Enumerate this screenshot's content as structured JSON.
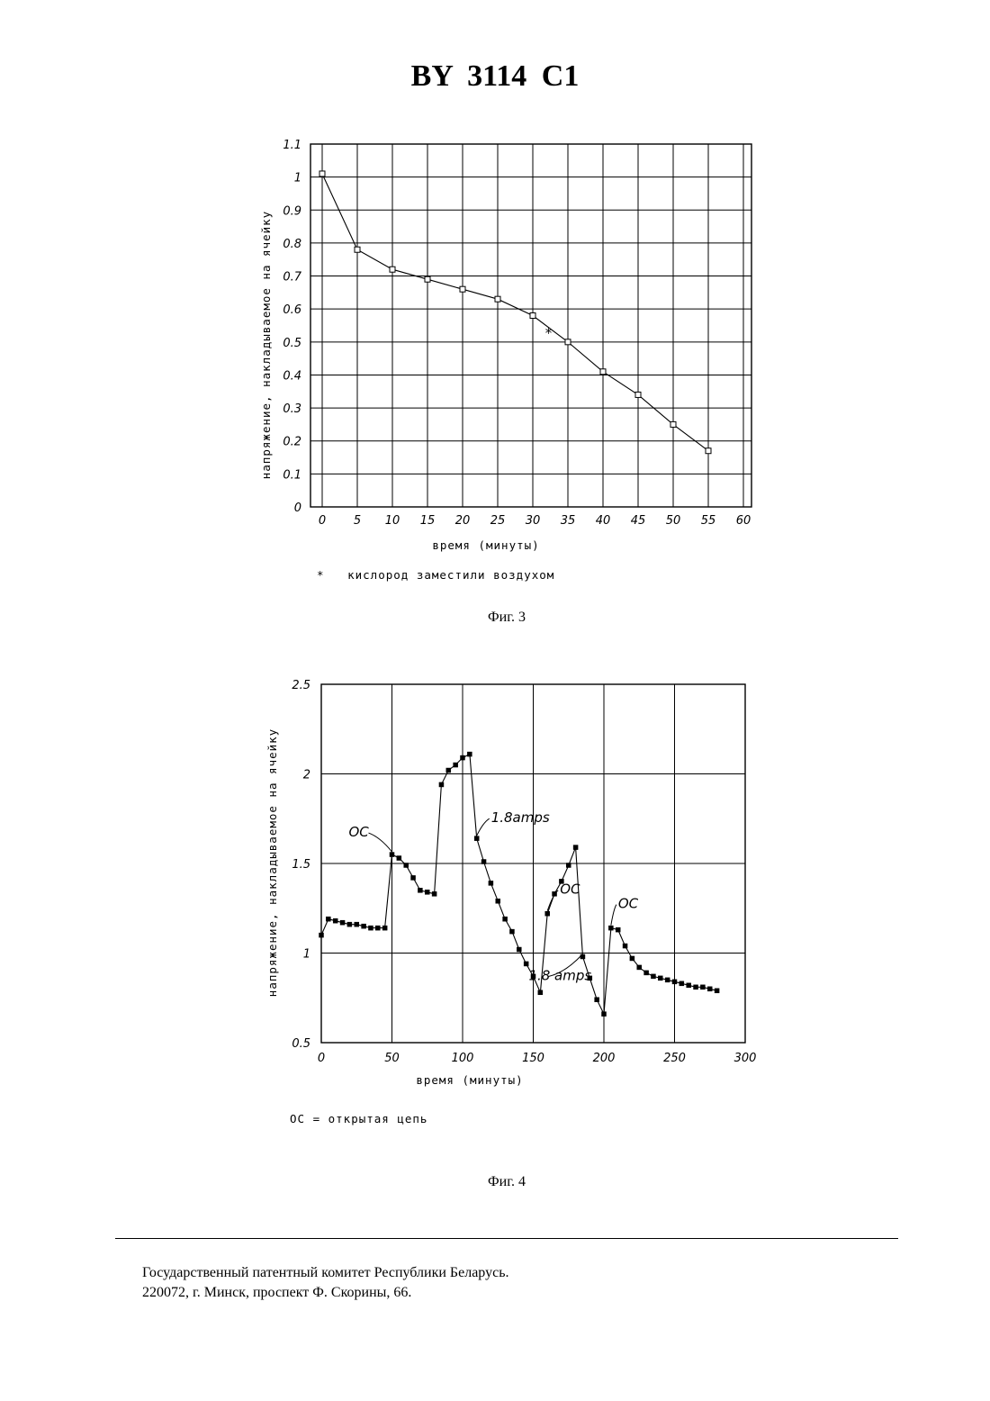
{
  "document": {
    "title": "BY 3114 C1",
    "footer_line1": "Государственный патентный комитет Республики Беларусь.",
    "footer_line2": "220072, г. Минск, проспект Ф. Скорины, 66."
  },
  "figures": [
    {
      "caption": "Фиг. 3",
      "footnote": "*   кислород заместили воздухом"
    },
    {
      "caption": "Фиг. 4",
      "footnote": "OC = открытая цепь"
    }
  ],
  "chart_data": [
    {
      "type": "line",
      "xlabel": "время (минуты)",
      "ylabel": "напряжение, накладываемое на ячейку",
      "xlim": [
        0,
        60
      ],
      "ylim": [
        0,
        1.1
      ],
      "xticks": [
        "0",
        "5",
        "10",
        "15",
        "20",
        "25",
        "30",
        "35",
        "40",
        "45",
        "50",
        "55",
        "60"
      ],
      "yticks": [
        "0",
        "0.1",
        "0.2",
        "0.3",
        "0.4",
        "0.5",
        "0.6",
        "0.7",
        "0.8",
        "0.9",
        "1",
        "1.1"
      ],
      "grid": true,
      "marker": "square-open",
      "x": [
        0,
        5,
        10,
        15,
        20,
        25,
        30,
        35,
        40,
        45,
        50,
        55
      ],
      "y": [
        1.01,
        0.78,
        0.72,
        0.69,
        0.66,
        0.63,
        0.58,
        0.5,
        0.41,
        0.34,
        0.25,
        0.17
      ],
      "annotations": [
        {
          "text": "*",
          "x": 31,
          "y": 0.53
        }
      ]
    },
    {
      "type": "line",
      "xlabel": "время (минуты)",
      "ylabel": "напряжение, накладываемое на ячейку",
      "xlim": [
        0,
        300
      ],
      "ylim": [
        0.5,
        2.5
      ],
      "xticks": [
        "0",
        "50",
        "100",
        "150",
        "200",
        "250",
        "300"
      ],
      "yticks": [
        "0.5",
        "1",
        "1.5",
        "2",
        "2.5"
      ],
      "grid": true,
      "marker": "square-filled",
      "x": [
        0,
        5,
        10,
        15,
        20,
        25,
        30,
        35,
        40,
        45,
        50,
        55,
        60,
        65,
        70,
        75,
        80,
        85,
        90,
        95,
        100,
        105,
        110,
        115,
        120,
        125,
        130,
        135,
        140,
        145,
        150,
        155,
        160,
        165,
        170,
        175,
        180,
        185,
        190,
        195,
        200,
        205,
        210,
        215,
        220,
        225,
        230,
        235,
        240,
        245,
        250,
        255,
        260,
        265,
        270,
        275,
        280
      ],
      "y": [
        1.1,
        1.19,
        1.18,
        1.17,
        1.16,
        1.16,
        1.15,
        1.14,
        1.14,
        1.14,
        1.55,
        1.53,
        1.49,
        1.42,
        1.35,
        1.34,
        1.33,
        1.94,
        2.02,
        2.05,
        2.09,
        2.11,
        1.64,
        1.51,
        1.39,
        1.29,
        1.19,
        1.12,
        1.02,
        0.94,
        0.87,
        0.78,
        1.22,
        1.33,
        1.4,
        1.49,
        1.59,
        0.98,
        0.86,
        0.74,
        0.66,
        1.14,
        1.13,
        1.04,
        0.97,
        0.92,
        0.89,
        0.87,
        0.86,
        0.85,
        0.84,
        0.83,
        0.82,
        0.81,
        0.81,
        0.8,
        0.79
      ],
      "annotations": [
        {
          "text": "OC",
          "x": 50,
          "y": 1.55
        },
        {
          "text": "1.8amps",
          "x": 110,
          "y": 1.64
        },
        {
          "text": "OC",
          "x": 160,
          "y": 1.22
        },
        {
          "text": "1.8 amps",
          "x": 185,
          "y": 0.98
        },
        {
          "text": "OC",
          "x": 205,
          "y": 1.14
        }
      ]
    }
  ]
}
